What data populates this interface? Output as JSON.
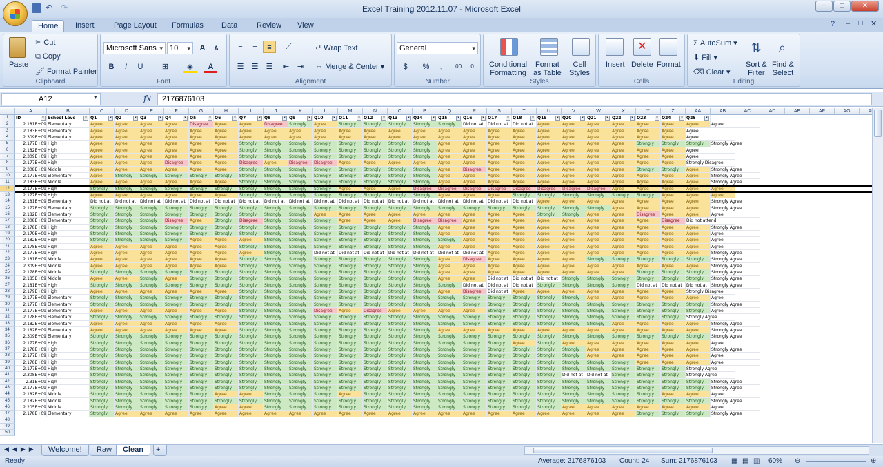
{
  "window": {
    "title": "Excel Training 2012.11.07 - Microsoft Excel"
  },
  "tabs": [
    "Home",
    "Insert",
    "Page Layout",
    "Formulas",
    "Data",
    "Review",
    "View"
  ],
  "ribbon": {
    "clipboard": {
      "label": "Clipboard",
      "paste": "Paste",
      "cut": "Cut",
      "copy": "Copy",
      "format_painter": "Format Painter"
    },
    "font": {
      "label": "Font",
      "name": "Microsoft Sans",
      "size": "10"
    },
    "alignment": {
      "label": "Alignment",
      "wrap": "Wrap Text",
      "merge": "Merge & Center"
    },
    "number": {
      "label": "Number",
      "format": "General",
      "currency": "$",
      "percent": "%",
      "comma": ","
    },
    "styles": {
      "label": "Styles",
      "conditional": "Conditional",
      "conditional2": "Formatting",
      "format_table": "Format",
      "format_table2": "as Table",
      "cell_styles": "Cell",
      "cell_styles2": "Styles"
    },
    "cells": {
      "label": "Cells",
      "insert": "Insert",
      "delete": "Delete",
      "format": "Format"
    },
    "editing": {
      "label": "Editing",
      "autosum": "AutoSum",
      "fill": "Fill",
      "clear": "Clear",
      "sort": "Sort &",
      "sort2": "Filter",
      "find": "Find &",
      "find2": "Select"
    }
  },
  "formula_bar": {
    "name_box": "A12",
    "fx": "fx",
    "value": "2176876103"
  },
  "columns": [
    "A",
    "B",
    "C",
    "D",
    "E",
    "F",
    "G",
    "H",
    "I",
    "J",
    "K",
    "L",
    "M",
    "N",
    "O",
    "P",
    "Q",
    "R",
    "S",
    "T",
    "U",
    "V",
    "W",
    "X",
    "Y",
    "Z",
    "AA",
    "AB",
    "AC",
    "AD",
    "AE",
    "AF",
    "AG",
    "AH"
  ],
  "headers": [
    "ID",
    "School Leve",
    "Q1",
    "Q2",
    "Q3",
    "Q4",
    "Q5",
    "Q6",
    "Q7",
    "Q8",
    "Q9",
    "Q10",
    "Q11",
    "Q12",
    "Q13",
    "Q14",
    "Q15",
    "Q16",
    "Q17",
    "Q18",
    "Q19",
    "Q20",
    "Q21",
    "Q22",
    "Q23",
    "Q24",
    "Q25"
  ],
  "codes": {
    "a": "Agree",
    "s": "Strongly",
    "d": "Disagree",
    "n": "Did not at"
  },
  "long_text": {
    "s": "Strongly Agree",
    "d": "Strongly Disagree",
    "n": "Did not attend",
    "a": "Agree"
  },
  "rows": [
    [
      "2.181E+09",
      "Elementary",
      "aaaadaadsasssssnnnaaaaaaaa"
    ],
    [
      "2.183E+09",
      "Elementary",
      "aaaaaaaaaaaaaaaaaaaaaaaaa"
    ],
    [
      "2.309E+09",
      "Elementary",
      "aaaaaaaaaaaaaaaaaaaaaaaaa"
    ],
    [
      "2.177E+09",
      "High",
      "aaaaaassssssssaaaaaaaassss"
    ],
    [
      "2.182E+09",
      "High",
      "aaaaaassssssssaaaaaaaaaaa"
    ],
    [
      "2.309E+09",
      "High",
      "aaaaaassssssssaaaaaaaaaaa"
    ],
    [
      "2.177E+09",
      "High",
      "aaadaadaddaaaaaaaaaaaaaad"
    ],
    [
      "2.308E+09",
      "Middle",
      "aaaaaassssssssadaaaaaassas"
    ],
    [
      "2.177E+09",
      "Elementary",
      "asssssssssssssaaaaaaaaaaas"
    ],
    [
      "2.183E+09",
      "Middle",
      "aaaaaassssssssaaaaaaaaaaas"
    ],
    [
      "2.177E+09",
      "High",
      "ssssssssssaaaddddddddaaaaaa"
    ],
    [
      "2.177E+09",
      "High",
      "aaaaaassssssssaaassssssaaas"
    ],
    [
      "2.181E+09",
      "Elementary",
      "nnnnnnnnnnnnnnnnnnaaaaaaas"
    ],
    [
      "2.177E+09",
      "Elementary",
      "sssssssssssssssssssssaaaas"
    ],
    [
      "2.182E+09",
      "Elementary",
      "sssssssssaaaaaaaaassaadaaa"
    ],
    [
      "2.308E+09",
      "Elementary",
      "sssdasdsssaaaddaaaaaaaadn"
    ],
    [
      "2.178E+09",
      "High",
      "ssssssssssssssaaaaaaaaaaas"
    ],
    [
      "2.179E+09",
      "High",
      "ssssssssssssssaaaaaaaaaaaa"
    ],
    [
      "2.182E+09",
      "High",
      "ssssaaassssssssaaaaaaaaaaa"
    ],
    [
      "2.178E+09",
      "High",
      "aaaaaassssssssaaaaaaaaaaaa"
    ],
    [
      "2.177E+09",
      "High",
      "aaaaaaassnnnnnnnaaaaaaaaas"
    ],
    [
      "2.181E+09",
      "Middle",
      "aaaaaassssssssadaaaassssss"
    ],
    [
      "2.309E+09",
      "Middle",
      "aaaaaassssssssaaaaaaaaaaas"
    ],
    [
      "2.178E+09",
      "Middle",
      "ssssssssssssssaaaaaaaassss"
    ],
    [
      "2.185E+09",
      "Middle",
      "aasassssssssssaannnsssssss"
    ],
    [
      "2.181E+09",
      "High",
      "sssssssssssssssnnnssssnnns"
    ],
    [
      "2.179E+09",
      "High",
      "aaaaaassssssssadnaaaaaaad"
    ],
    [
      "2.177E+09",
      "Elementary",
      "ssssssssssssssssssssaaaaaa"
    ],
    [
      "2.177E+09",
      "Elementary",
      "ssssssssssssssssssssssssss"
    ],
    [
      "2.177E+09",
      "Elementary",
      "aaaaaasssdadaaaasssssssssa"
    ],
    [
      "2.178E+09",
      "Elementary",
      "sssssssssssssssssssssssss"
    ],
    [
      "2.182E+09",
      "Elementary",
      "aaaaaasssssssssssssssaaaas"
    ],
    [
      "2.182E+09",
      "Elementary",
      "aaaaaassssssssaaaaaaaaaaas"
    ],
    [
      "2.309E+09",
      "Elementary",
      "ssssssssssssssssssssssssss"
    ],
    [
      "2.177E+09",
      "High",
      "sssssssssssssssssasaaaaaaa"
    ],
    [
      "2.178E+09",
      "High",
      "ssssssssssssssssssssaaaaas"
    ],
    [
      "2.177E+09",
      "High",
      "ssssssssssssssssssssaaaaaa"
    ],
    [
      "2.178E+09",
      "High",
      "ssssssssssssssssssssssaaaa"
    ],
    [
      "2.177E+09",
      "High",
      "sssssssssssssssssssssssss"
    ],
    [
      "2.308E+09",
      "High",
      "sssssssssssssssssssnnssss"
    ],
    [
      "2.31E+09",
      "High",
      "ssssssssssssssssssssssssss"
    ],
    [
      "2.177E+09",
      "High",
      "ssssssssssssssssssssssssss"
    ],
    [
      "2.182E+09",
      "Middle",
      "sssssaasssassssssssssssaaa"
    ],
    [
      "2.182E+09",
      "Middle",
      "ssssssssssssssssssssssssss"
    ],
    [
      "2.205E+09",
      "Middle",
      "sssssaassssssssssssaaaaaaa"
    ],
    [
      "2.178E+09",
      "Elementary",
      "saaaaaaaaaaaaaaaaaaaaassss"
    ]
  ],
  "row_numbers": [
    "1",
    "2",
    "3",
    "4",
    "5",
    "6",
    "7",
    "8",
    "9",
    "10",
    "11",
    "12",
    "13",
    "14",
    "15",
    "16",
    "17",
    "18",
    "19",
    "20",
    "21",
    "22",
    "23",
    "24",
    "25",
    "26",
    "27",
    "28",
    "29",
    "30",
    "31",
    "32",
    "33",
    "34",
    "35",
    "36",
    "37",
    "38",
    "39",
    "40",
    "41",
    "42",
    "43",
    "44",
    "45",
    "46",
    "47",
    "48",
    "49",
    "50"
  ],
  "sheets": [
    "Welcome!",
    "Raw",
    "Clean"
  ],
  "status": {
    "ready": "Ready",
    "average": "Average: 2176876103",
    "count": "Count: 24",
    "sum": "Sum: 2176876103",
    "zoom": "60%"
  },
  "colors": {
    "agree": "#fbe29a",
    "strongly": "#cde9c4",
    "disagree": "#f5c5c8",
    "accent": "#15325b"
  }
}
